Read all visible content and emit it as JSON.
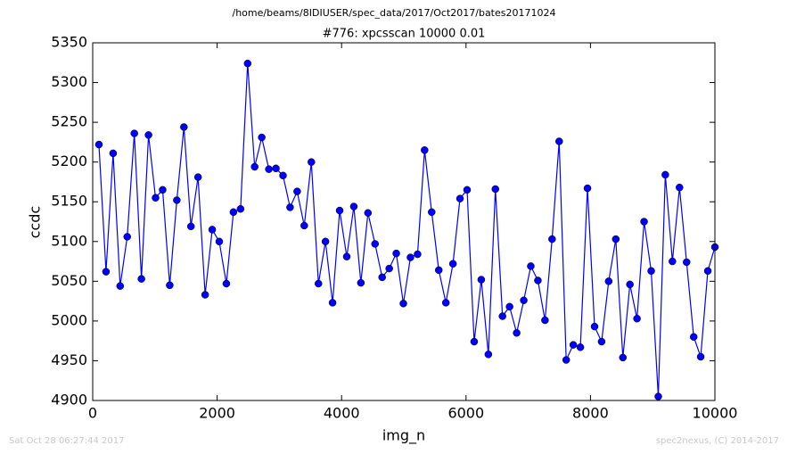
{
  "chart_data": {
    "type": "line",
    "suptitle": "/home/beams/8IDIUSER/spec_data/2017/Oct2017/bates20171024",
    "title": "#776: xpcsscan 10000 0.01",
    "xlabel": "img_n",
    "ylabel": "ccdc",
    "footer_left": "Sat Oct 28 06:27:44 2017",
    "footer_right": "spec2nexus, (C) 2014-2017",
    "x": [
      100,
      214,
      328,
      441,
      555,
      669,
      783,
      897,
      1010,
      1124,
      1238,
      1352,
      1466,
      1579,
      1693,
      1807,
      1921,
      2034,
      2148,
      2262,
      2376,
      2490,
      2603,
      2717,
      2831,
      2945,
      3059,
      3172,
      3286,
      3400,
      3514,
      3628,
      3741,
      3855,
      3969,
      4083,
      4197,
      4310,
      4424,
      4538,
      4652,
      4766,
      4879,
      4993,
      5107,
      5221,
      5334,
      5448,
      5562,
      5676,
      5790,
      5903,
      6017,
      6131,
      6245,
      6359,
      6472,
      6586,
      6700,
      6814,
      6928,
      7041,
      7155,
      7269,
      7383,
      7497,
      7610,
      7724,
      7838,
      7952,
      8066,
      8179,
      8293,
      8407,
      8521,
      8634,
      8748,
      8862,
      8976,
      9090,
      9203,
      9317,
      9431,
      9545,
      9659,
      9772,
      9886,
      10000
    ],
    "series": [
      {
        "name": "ccdc",
        "color": "#0000ff",
        "values": [
          5222,
          5062,
          5211,
          5044,
          5106,
          5236,
          5053,
          5234,
          5155,
          5165,
          5045,
          5152,
          5244,
          5119,
          5181,
          5033,
          5115,
          5100,
          5047,
          5137,
          5141,
          5324,
          5194,
          5231,
          5191,
          5192,
          5183,
          5143,
          5163,
          5120,
          5200,
          5047,
          5100,
          5023,
          5139,
          5081,
          5144,
          5048,
          5136,
          5097,
          5055,
          5066,
          5085,
          5022,
          5080,
          5084,
          5215,
          5137,
          5064,
          5023,
          5072,
          5154,
          5165,
          4974,
          5052,
          4958,
          5166,
          5006,
          5018,
          4985,
          5026,
          5069,
          5051,
          5001,
          5103,
          5226,
          4951,
          4970,
          4967,
          5167,
          4993,
          4974,
          5050,
          5103,
          4954,
          5046,
          5003,
          5125,
          5063,
          4905,
          5184,
          5075,
          5168,
          5074,
          4980,
          4955,
          5063,
          5093
        ]
      }
    ],
    "xlim": [
      0,
      10000
    ],
    "xticks": [
      0,
      2000,
      4000,
      6000,
      8000,
      10000
    ],
    "ylim": [
      4900,
      5350
    ],
    "yticks": [
      4900,
      4950,
      5000,
      5050,
      5100,
      5150,
      5200,
      5250,
      5300,
      5350
    ],
    "grid": false
  }
}
